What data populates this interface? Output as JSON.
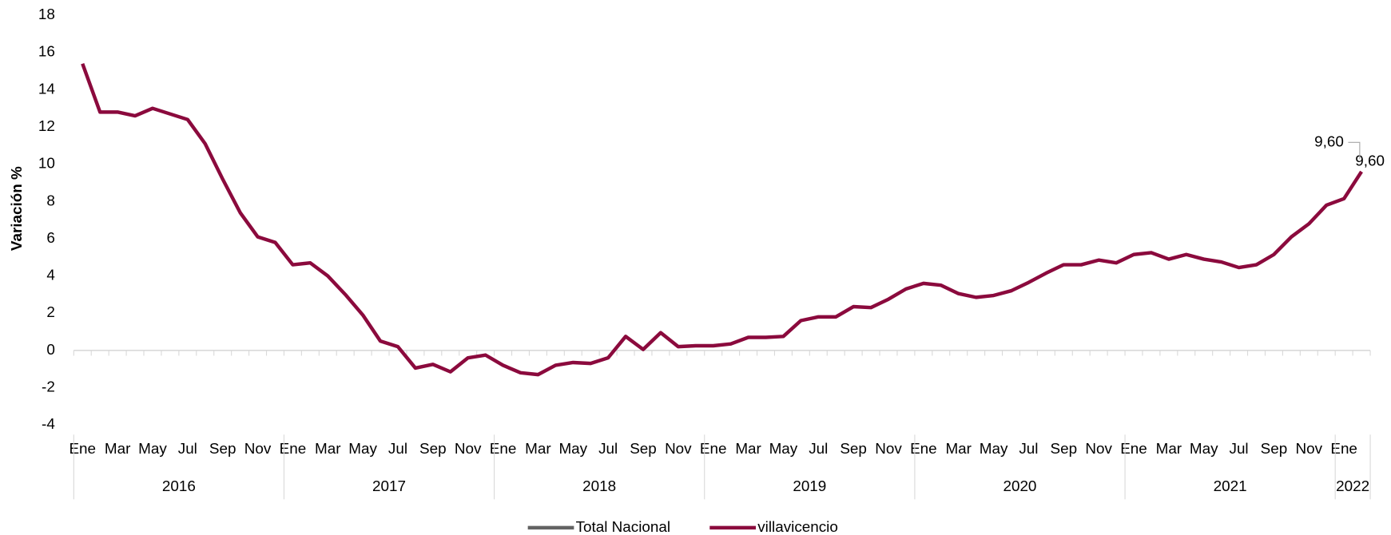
{
  "chart_data": {
    "type": "line",
    "y_label": "Variación %",
    "ylim": [
      -4,
      18
    ],
    "yticks": [
      -4,
      -2,
      0,
      2,
      4,
      6,
      8,
      10,
      12,
      14,
      16,
      18
    ],
    "categories": [
      "Ene",
      null,
      "Mar",
      null,
      "May",
      null,
      "Jul",
      null,
      "Sep",
      null,
      "Nov",
      null,
      "Ene",
      null,
      "Mar",
      null,
      "May",
      null,
      "Jul",
      null,
      "Sep",
      null,
      "Nov",
      null,
      "Ene",
      null,
      "Mar",
      null,
      "May",
      null,
      "Jul",
      null,
      "Sep",
      null,
      "Nov",
      null,
      "Ene",
      null,
      "Mar",
      null,
      "May",
      null,
      "Jul",
      null,
      "Sep",
      null,
      "Nov",
      null,
      "Ene",
      null,
      "Mar",
      null,
      "May",
      null,
      "Jul",
      null,
      "Sep",
      null,
      "Nov",
      null,
      "Ene",
      null,
      "Mar",
      null,
      "May",
      null,
      "Jul",
      null,
      "Sep",
      null,
      "Nov",
      null,
      "Ene",
      null
    ],
    "years": [
      "2016",
      "2017",
      "2018",
      "2019",
      "2020",
      "2021",
      "2022"
    ],
    "series": [
      {
        "name": "Total Nacional",
        "color": "#636363",
        "values": [
          null,
          null,
          null,
          null,
          null,
          null,
          null,
          null,
          null,
          null,
          null,
          null,
          null,
          null,
          null,
          null,
          null,
          null,
          null,
          null,
          null,
          null,
          null,
          null,
          null,
          null,
          null,
          null,
          null,
          null,
          null,
          null,
          null,
          null,
          null,
          null,
          null,
          null,
          null,
          null,
          null,
          null,
          null,
          null,
          null,
          null,
          null,
          null,
          null,
          null,
          null,
          null,
          null,
          null,
          null,
          null,
          null,
          null,
          null,
          null,
          null,
          null,
          null,
          null,
          null,
          null,
          null,
          null,
          null,
          null,
          null,
          null,
          null,
          null
        ]
      },
      {
        "name": "villavicencio",
        "color": "#8b0a3d",
        "values": [
          15.4,
          12.8,
          12.8,
          12.6,
          13.0,
          12.7,
          12.4,
          11.1,
          9.2,
          7.4,
          6.1,
          5.8,
          4.6,
          4.7,
          4.0,
          3.0,
          1.9,
          0.5,
          0.2,
          -0.95,
          -0.75,
          -1.15,
          -0.4,
          -0.25,
          -0.8,
          -1.2,
          -1.3,
          -0.8,
          -0.65,
          -0.7,
          -0.4,
          0.75,
          0.05,
          0.95,
          0.2,
          0.25,
          0.25,
          0.35,
          0.7,
          0.7,
          0.75,
          1.6,
          1.8,
          1.8,
          2.35,
          2.3,
          2.75,
          3.3,
          3.6,
          3.5,
          3.05,
          2.85,
          2.95,
          3.2,
          3.65,
          4.15,
          4.6,
          4.6,
          4.85,
          4.7,
          5.15,
          5.25,
          4.9,
          5.15,
          4.9,
          4.75,
          4.45,
          4.6,
          5.15,
          6.1,
          6.8,
          7.8,
          8.15,
          9.6
        ],
        "value_labels": [
          null,
          null,
          null,
          null,
          null,
          null,
          null,
          null,
          null,
          null,
          null,
          null,
          null,
          null,
          null,
          null,
          null,
          null,
          null,
          null,
          null,
          null,
          null,
          null,
          null,
          null,
          null,
          null,
          null,
          null,
          null,
          null,
          null,
          null,
          null,
          null,
          null,
          null,
          null,
          null,
          null,
          null,
          null,
          null,
          null,
          null,
          null,
          null,
          null,
          null,
          null,
          null,
          null,
          null,
          null,
          null,
          null,
          null,
          null,
          null,
          null,
          null,
          null,
          null,
          null,
          null,
          null,
          null,
          null,
          null,
          null,
          null,
          null,
          "9,60"
        ]
      }
    ],
    "annotations": [
      {
        "text": "9,60"
      }
    ]
  }
}
